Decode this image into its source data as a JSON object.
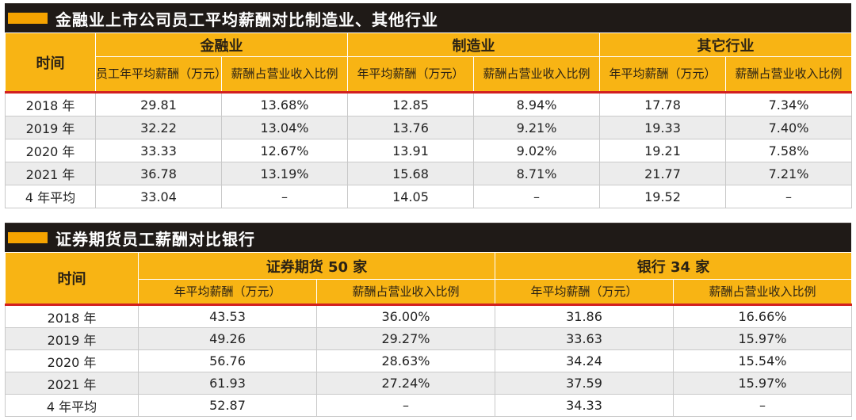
{
  "section1": {
    "title": "金融业上市公司员工平均薪酬对比制造业、其他行业",
    "time_header": "时间",
    "groups": [
      "金融业",
      "制造业",
      "其它行业"
    ],
    "subheaders": [
      "员工年平均薪酬（万元）",
      "薪酬占营业收入比例",
      "年平均薪酬（万元）",
      "薪酬占营业收入比例",
      "年平均薪酬（万元）",
      "薪酬占营业收入比例"
    ],
    "rows": [
      [
        "2018 年",
        "29.81",
        "13.68%",
        "12.85",
        "8.94%",
        "17.78",
        "7.34%"
      ],
      [
        "2019 年",
        "32.22",
        "13.04%",
        "13.76",
        "9.21%",
        "19.33",
        "7.40%"
      ],
      [
        "2020 年",
        "33.33",
        "12.67%",
        "13.91",
        "9.02%",
        "19.21",
        "7.58%"
      ],
      [
        "2021 年",
        "36.78",
        "13.19%",
        "15.68",
        "8.71%",
        "21.77",
        "7.21%"
      ],
      [
        "4 年平均",
        "33.04",
        "–",
        "14.05",
        "–",
        "19.52",
        "–"
      ]
    ]
  },
  "section2": {
    "title": "证券期货员工薪酬对比银行",
    "time_header": "时间",
    "groups": [
      "证券期货 50 家",
      "银行 34 家"
    ],
    "subheaders": [
      "年平均薪酬（万元）",
      "薪酬占营业收入比例",
      "年平均薪酬（万元）",
      "薪酬占营业收入比例"
    ],
    "rows": [
      [
        "2018 年",
        "43.53",
        "36.00%",
        "31.86",
        "16.66%"
      ],
      [
        "2019 年",
        "49.26",
        "29.27%",
        "33.63",
        "15.97%"
      ],
      [
        "2020 年",
        "56.76",
        "28.63%",
        "34.24",
        "15.54%"
      ],
      [
        "2021 年",
        "61.93",
        "27.24%",
        "37.59",
        "15.97%"
      ],
      [
        "4 年平均",
        "52.87",
        "–",
        "34.33",
        "–"
      ]
    ]
  }
}
